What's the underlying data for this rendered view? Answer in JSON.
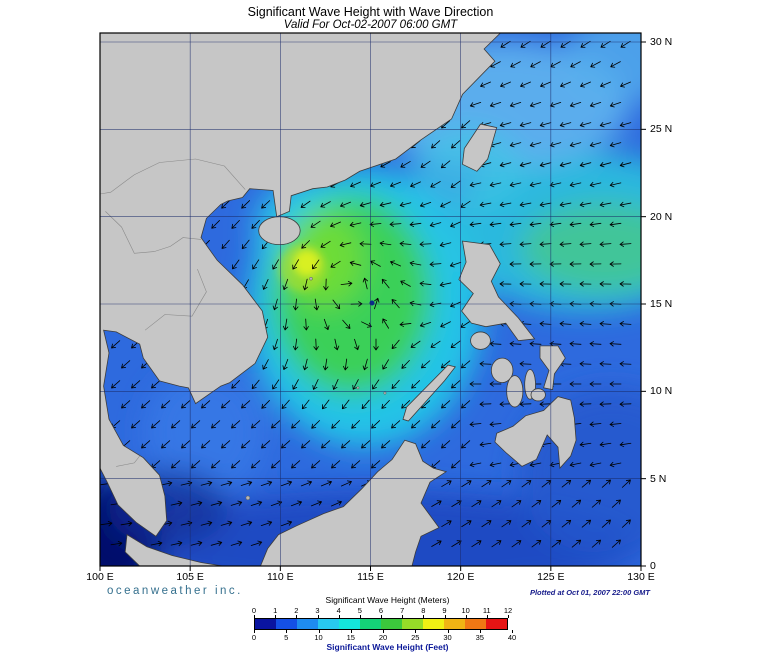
{
  "header": {
    "title": "Significant Wave Height with Wave Direction",
    "subtitle": "Valid For Oct-02-2007 06:00 GMT"
  },
  "map": {
    "x_ticks": [
      "100 E",
      "105 E",
      "110 E",
      "115 E",
      "120 E",
      "125 E",
      "130 E"
    ],
    "y_ticks": [
      "30 N",
      "25 N",
      "20 N",
      "15 N",
      "10 N",
      "5 N",
      "0"
    ]
  },
  "footer": {
    "branding": "oceanweather inc.",
    "plotted": "Plotted at Oct 01, 2007 22:00 GMT"
  },
  "legend": {
    "meters_label": "Significant Wave Height (Meters)",
    "feet_label": "Significant Wave Height (Feet)",
    "meters_ticks": [
      "0",
      "1",
      "2",
      "3",
      "4",
      "5",
      "6",
      "7",
      "8",
      "9",
      "10",
      "11",
      "12"
    ],
    "feet_ticks": [
      "0",
      "5",
      "10",
      "15",
      "20",
      "25",
      "30",
      "35",
      "40"
    ],
    "colors": [
      "#0a14a0",
      "#1450e6",
      "#1e8cf0",
      "#28c8f0",
      "#14e6dc",
      "#14d278",
      "#3cc83c",
      "#96dc28",
      "#f0f014",
      "#f0b414",
      "#f07814",
      "#e61414"
    ]
  },
  "chart_data": {
    "type": "heatmap",
    "title": "Significant Wave Height with Wave Direction",
    "valid_time": "Oct-02-2007 06:00 GMT",
    "plotted_time": "Oct 01, 2007 22:00 GMT",
    "x_axis": {
      "ticks": [
        "100 E",
        "105 E",
        "110 E",
        "115 E",
        "120 E",
        "125 E",
        "130 E"
      ]
    },
    "y_axis": {
      "ticks": [
        "0",
        "5 N",
        "10 N",
        "15 N",
        "20 N",
        "25 N",
        "30 N"
      ]
    },
    "colorbar": {
      "primary_units": "Meters",
      "primary_range": [
        0,
        12
      ],
      "primary_ticks": [
        0,
        1,
        2,
        3,
        4,
        5,
        6,
        7,
        8,
        9,
        10,
        11,
        12
      ],
      "secondary_units": "Feet",
      "secondary_range": [
        0,
        40
      ],
      "secondary_ticks": [
        0,
        5,
        10,
        15,
        20,
        25,
        30,
        35,
        40
      ],
      "colors": [
        "#0a14a0",
        "#1450e6",
        "#1e8cf0",
        "#28c8f0",
        "#14e6dc",
        "#14d278",
        "#3cc83c",
        "#96dc28",
        "#f0f014",
        "#f0b414",
        "#f07814",
        "#e61414"
      ]
    },
    "overlay": "wave direction arrows",
    "land_color": "#c6c6c6",
    "grid": true
  }
}
